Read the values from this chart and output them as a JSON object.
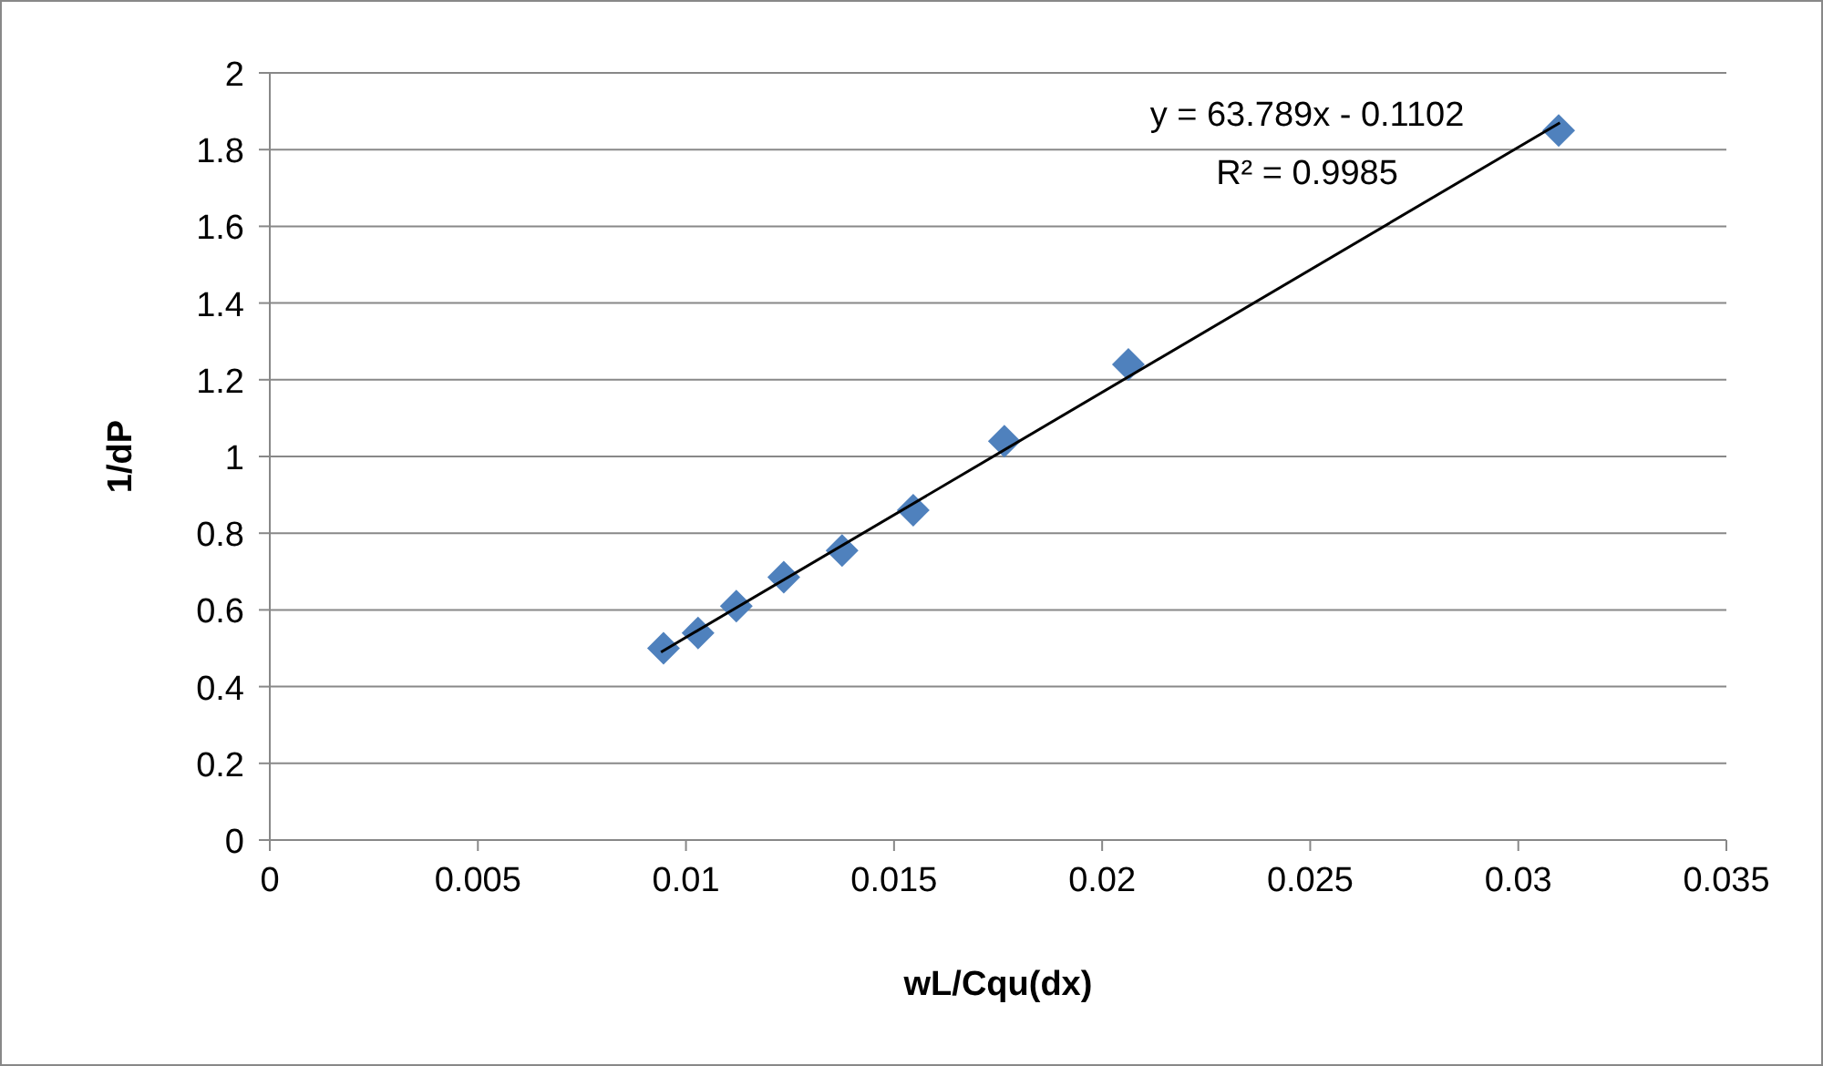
{
  "chart_data": {
    "type": "scatter",
    "xlabel": "wL/Cqu(dx)",
    "ylabel": "1/dP",
    "series": [
      {
        "color": "#4f81bd",
        "marker": "diamond",
        "x": [
          0.00946,
          0.01029,
          0.01121,
          0.01235,
          0.01375,
          0.01546,
          0.01765,
          0.02063,
          0.03097
        ],
        "values": [
          0.5,
          0.54,
          0.61,
          0.685,
          0.755,
          0.86,
          1.04,
          1.24,
          1.85
        ]
      },
      {
        "type": "line",
        "color": "#000000",
        "x": [
          0.0094,
          0.031
        ],
        "values": [
          0.49,
          1.87
        ]
      }
    ],
    "annotations": [
      "y = 63.789x - 0.1102",
      "R² = 0.9985"
    ],
    "xlim": [
      0,
      0.035
    ],
    "xticks": [
      0,
      0.005,
      0.01,
      0.015,
      0.02,
      0.025,
      0.03,
      0.035
    ],
    "ylim": [
      0,
      2
    ],
    "yticks": [
      0,
      0.2,
      0.4,
      0.6,
      0.8,
      1,
      1.2,
      1.4,
      1.6,
      1.8,
      2
    ],
    "grid": "y"
  }
}
